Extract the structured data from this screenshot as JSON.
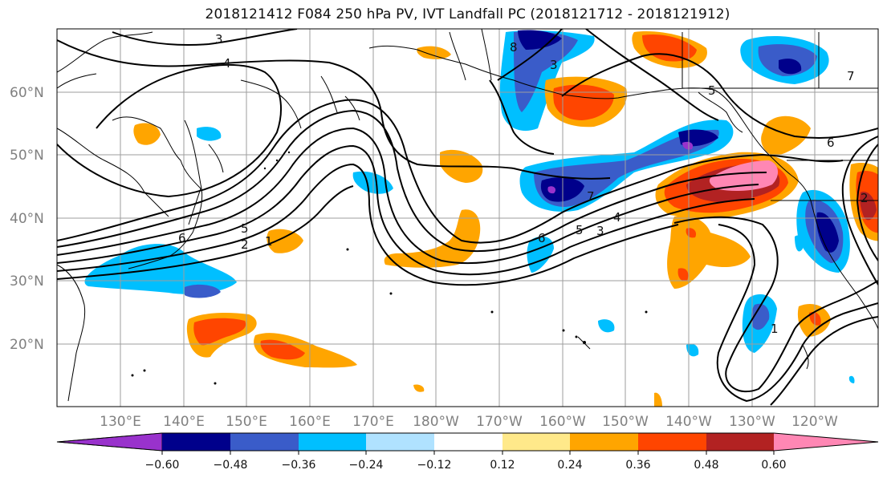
{
  "title": "2018121412 F084 250 hPa PV, IVT Landfall PC (2018121712 - 2018121912)",
  "map": {
    "lat_labels": [
      "60°N",
      "50°N",
      "40°N",
      "30°N",
      "20°N"
    ],
    "lon_labels": [
      "130°E",
      "140°E",
      "150°E",
      "160°E",
      "170°E",
      "180°W",
      "170°W",
      "160°W",
      "150°W",
      "140°W",
      "130°W",
      "120°W"
    ],
    "contour_labels": [
      "3",
      "4",
      "5",
      "2",
      "1",
      "6",
      "5",
      "4",
      "3",
      "6",
      "7",
      "8",
      "3",
      "5",
      "6",
      "7",
      "1",
      "2"
    ]
  },
  "colorbar": {
    "ticks": [
      "−0.60",
      "−0.48",
      "−0.36",
      "−0.24",
      "−0.12",
      "0.12",
      "0.24",
      "0.36",
      "0.48",
      "0.60"
    ],
    "colors": [
      "#9932cc",
      "#00008b",
      "#3a5cc9",
      "#00bfff",
      "#b0e2ff",
      "#ffffff",
      "#ffe98a",
      "#ffa500",
      "#ff4500",
      "#b22222",
      "#ff87b4"
    ]
  }
}
